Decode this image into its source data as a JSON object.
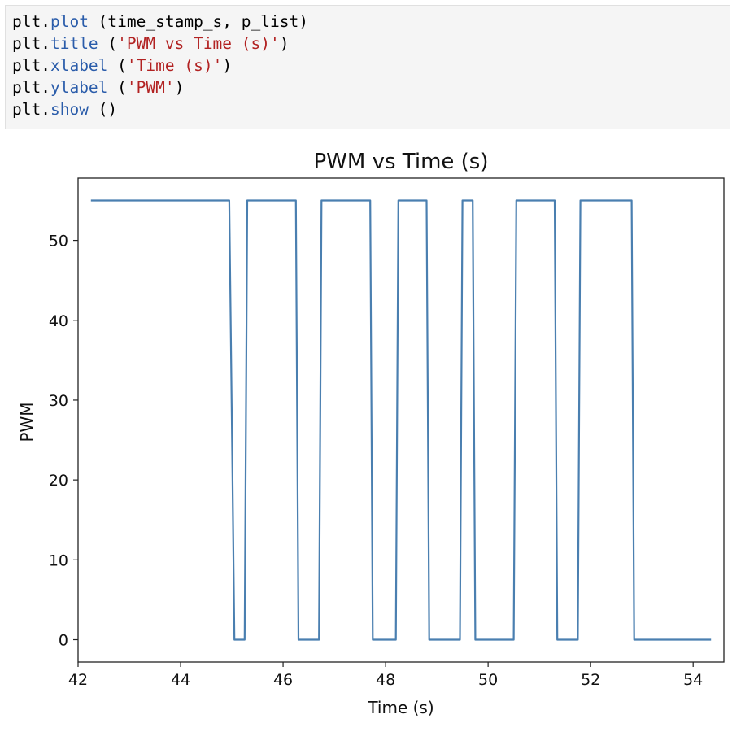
{
  "code_cell": {
    "lines": [
      {
        "obj": "plt.",
        "func": "plot",
        "rest": " (time_stamp_s, p_list)",
        "str": "",
        "tail": ""
      },
      {
        "obj": "plt.",
        "func": "title",
        "rest": " (",
        "str": "'PWM vs Time (s)'",
        "tail": ")"
      },
      {
        "obj": "plt.",
        "func": "xlabel",
        "rest": " (",
        "str": "'Time (s)'",
        "tail": ")"
      },
      {
        "obj": "plt.",
        "func": "ylabel",
        "rest": " (",
        "str": "'PWM'",
        "tail": ")"
      },
      {
        "obj": "plt.",
        "func": "show",
        "rest": " ()",
        "str": "",
        "tail": ""
      }
    ]
  },
  "chart_data": {
    "type": "line",
    "title": "PWM vs Time (s)",
    "xlabel": "Time (s)",
    "ylabel": "PWM",
    "xlim": [
      42.0,
      54.6
    ],
    "ylim": [
      -2.8,
      57.8
    ],
    "xticks": [
      42,
      44,
      46,
      48,
      50,
      52,
      54
    ],
    "yticks": [
      0,
      10,
      20,
      30,
      40,
      50
    ],
    "grid": false,
    "legend": "none",
    "line_color": "#4a7fb0",
    "series": [
      {
        "x": [
          42.25,
          44.95,
          45.05,
          45.25,
          45.3,
          46.25,
          46.3,
          46.7,
          46.75,
          47.7,
          47.75,
          48.2,
          48.25,
          48.8,
          48.85,
          49.45,
          49.5,
          49.7,
          49.75,
          50.5,
          50.55,
          51.3,
          51.35,
          51.75,
          51.8,
          52.8,
          52.85,
          54.35
        ],
        "y": [
          55,
          55,
          0,
          0,
          55,
          55,
          0,
          0,
          55,
          55,
          0,
          0,
          55,
          55,
          0,
          0,
          55,
          55,
          0,
          0,
          55,
          55,
          0,
          0,
          55,
          55,
          0,
          0
        ]
      }
    ]
  }
}
